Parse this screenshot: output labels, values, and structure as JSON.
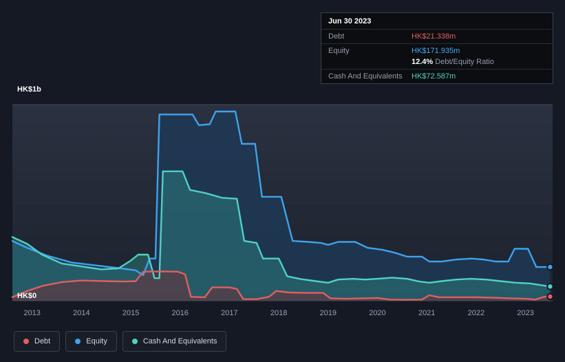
{
  "tooltip": {
    "date": "Jun 30 2023",
    "debt_label": "Debt",
    "debt_value": "HK$21.338m",
    "equity_label": "Equity",
    "equity_value": "HK$171.935m",
    "ratio_value": "12.4%",
    "ratio_label": "Debt/Equity Ratio",
    "cash_label": "Cash And Equivalents",
    "cash_value": "HK$72.587m"
  },
  "axis": {
    "y_top_label": "HK$1b",
    "y_bottom_label": "HK$0",
    "x_ticks": [
      "2013",
      "2014",
      "2015",
      "2016",
      "2017",
      "2018",
      "2019",
      "2020",
      "2021",
      "2022",
      "2023"
    ]
  },
  "legend": [
    {
      "label": "Debt",
      "color": "#e15f5f"
    },
    {
      "label": "Equity",
      "color": "#3fa2ec"
    },
    {
      "label": "Cash And Equivalents",
      "color": "#4fd1c5"
    }
  ],
  "chart_data": {
    "type": "area",
    "y_axis_labels": [
      "HK$0",
      "HK$1b"
    ],
    "y_unit": "HK$ billions",
    "x_range": [
      2012.6,
      2023.55
    ],
    "y_range": [
      0,
      1
    ],
    "grid": true,
    "legend_position": "bottom-left",
    "series": [
      {
        "key": "equity",
        "name": "Equity",
        "color": "#3fa2ec",
        "fill": "#1e3a57",
        "fill_opacity": 0.8,
        "points": [
          [
            2012.6,
            0.305
          ],
          [
            2012.9,
            0.27
          ],
          [
            2013.3,
            0.23
          ],
          [
            2013.8,
            0.195
          ],
          [
            2014.3,
            0.18
          ],
          [
            2014.8,
            0.165
          ],
          [
            2015.1,
            0.155
          ],
          [
            2015.25,
            0.13
          ],
          [
            2015.38,
            0.215
          ],
          [
            2015.5,
            0.215
          ],
          [
            2015.58,
            0.95
          ],
          [
            2016.25,
            0.95
          ],
          [
            2016.38,
            0.895
          ],
          [
            2016.6,
            0.9
          ],
          [
            2016.72,
            0.965
          ],
          [
            2017.12,
            0.965
          ],
          [
            2017.25,
            0.8
          ],
          [
            2017.52,
            0.8
          ],
          [
            2017.66,
            0.53
          ],
          [
            2018.05,
            0.53
          ],
          [
            2018.28,
            0.305
          ],
          [
            2018.6,
            0.3
          ],
          [
            2018.85,
            0.295
          ],
          [
            2019.0,
            0.285
          ],
          [
            2019.2,
            0.3
          ],
          [
            2019.55,
            0.3
          ],
          [
            2019.8,
            0.27
          ],
          [
            2020.1,
            0.26
          ],
          [
            2020.35,
            0.245
          ],
          [
            2020.6,
            0.225
          ],
          [
            2020.9,
            0.225
          ],
          [
            2021.05,
            0.2
          ],
          [
            2021.3,
            0.2
          ],
          [
            2021.6,
            0.21
          ],
          [
            2021.9,
            0.215
          ],
          [
            2022.15,
            0.21
          ],
          [
            2022.4,
            0.2
          ],
          [
            2022.65,
            0.2
          ],
          [
            2022.78,
            0.265
          ],
          [
            2023.05,
            0.265
          ],
          [
            2023.22,
            0.172
          ],
          [
            2023.5,
            0.1719
          ]
        ]
      },
      {
        "key": "cash",
        "name": "Cash And Equivalents",
        "color": "#4fd1c5",
        "fill": "#2f8a84",
        "fill_opacity": 0.45,
        "points": [
          [
            2012.6,
            0.325
          ],
          [
            2012.9,
            0.29
          ],
          [
            2013.2,
            0.235
          ],
          [
            2013.6,
            0.19
          ],
          [
            2014.0,
            0.175
          ],
          [
            2014.4,
            0.16
          ],
          [
            2014.75,
            0.165
          ],
          [
            2015.0,
            0.205
          ],
          [
            2015.15,
            0.235
          ],
          [
            2015.35,
            0.235
          ],
          [
            2015.48,
            0.115
          ],
          [
            2015.58,
            0.115
          ],
          [
            2015.65,
            0.66
          ],
          [
            2016.05,
            0.66
          ],
          [
            2016.2,
            0.565
          ],
          [
            2016.5,
            0.55
          ],
          [
            2016.85,
            0.525
          ],
          [
            2017.15,
            0.52
          ],
          [
            2017.3,
            0.305
          ],
          [
            2017.55,
            0.295
          ],
          [
            2017.68,
            0.215
          ],
          [
            2018.0,
            0.215
          ],
          [
            2018.17,
            0.125
          ],
          [
            2018.45,
            0.11
          ],
          [
            2018.75,
            0.1
          ],
          [
            2019.0,
            0.092
          ],
          [
            2019.2,
            0.108
          ],
          [
            2019.5,
            0.112
          ],
          [
            2019.75,
            0.108
          ],
          [
            2020.0,
            0.112
          ],
          [
            2020.3,
            0.118
          ],
          [
            2020.6,
            0.112
          ],
          [
            2020.85,
            0.098
          ],
          [
            2021.05,
            0.092
          ],
          [
            2021.3,
            0.1
          ],
          [
            2021.6,
            0.108
          ],
          [
            2021.9,
            0.112
          ],
          [
            2022.2,
            0.108
          ],
          [
            2022.5,
            0.1
          ],
          [
            2022.8,
            0.092
          ],
          [
            2023.1,
            0.088
          ],
          [
            2023.3,
            0.08
          ],
          [
            2023.5,
            0.0726
          ]
        ]
      },
      {
        "key": "debt",
        "name": "Debt",
        "color": "#e15f5f",
        "fill": "#6e2f3a",
        "fill_opacity": 0.55,
        "points": [
          [
            2012.6,
            0.018
          ],
          [
            2012.9,
            0.05
          ],
          [
            2013.2,
            0.075
          ],
          [
            2013.6,
            0.095
          ],
          [
            2014.0,
            0.103
          ],
          [
            2014.5,
            0.1
          ],
          [
            2014.9,
            0.098
          ],
          [
            2015.1,
            0.1
          ],
          [
            2015.25,
            0.148
          ],
          [
            2015.6,
            0.15
          ],
          [
            2015.95,
            0.148
          ],
          [
            2016.1,
            0.135
          ],
          [
            2016.22,
            0.02
          ],
          [
            2016.5,
            0.018
          ],
          [
            2016.65,
            0.068
          ],
          [
            2017.0,
            0.068
          ],
          [
            2017.15,
            0.06
          ],
          [
            2017.28,
            0.008
          ],
          [
            2017.55,
            0.008
          ],
          [
            2017.8,
            0.02
          ],
          [
            2017.95,
            0.05
          ],
          [
            2018.2,
            0.042
          ],
          [
            2018.55,
            0.04
          ],
          [
            2018.9,
            0.04
          ],
          [
            2019.05,
            0.012
          ],
          [
            2019.35,
            0.01
          ],
          [
            2019.7,
            0.012
          ],
          [
            2020.0,
            0.014
          ],
          [
            2020.25,
            0.006
          ],
          [
            2020.6,
            0.005
          ],
          [
            2020.9,
            0.006
          ],
          [
            2021.05,
            0.028
          ],
          [
            2021.25,
            0.018
          ],
          [
            2021.6,
            0.018
          ],
          [
            2022.0,
            0.018
          ],
          [
            2022.4,
            0.015
          ],
          [
            2022.7,
            0.012
          ],
          [
            2023.0,
            0.01
          ],
          [
            2023.2,
            0.006
          ],
          [
            2023.38,
            0.02
          ],
          [
            2023.5,
            0.0213
          ]
        ]
      }
    ]
  }
}
